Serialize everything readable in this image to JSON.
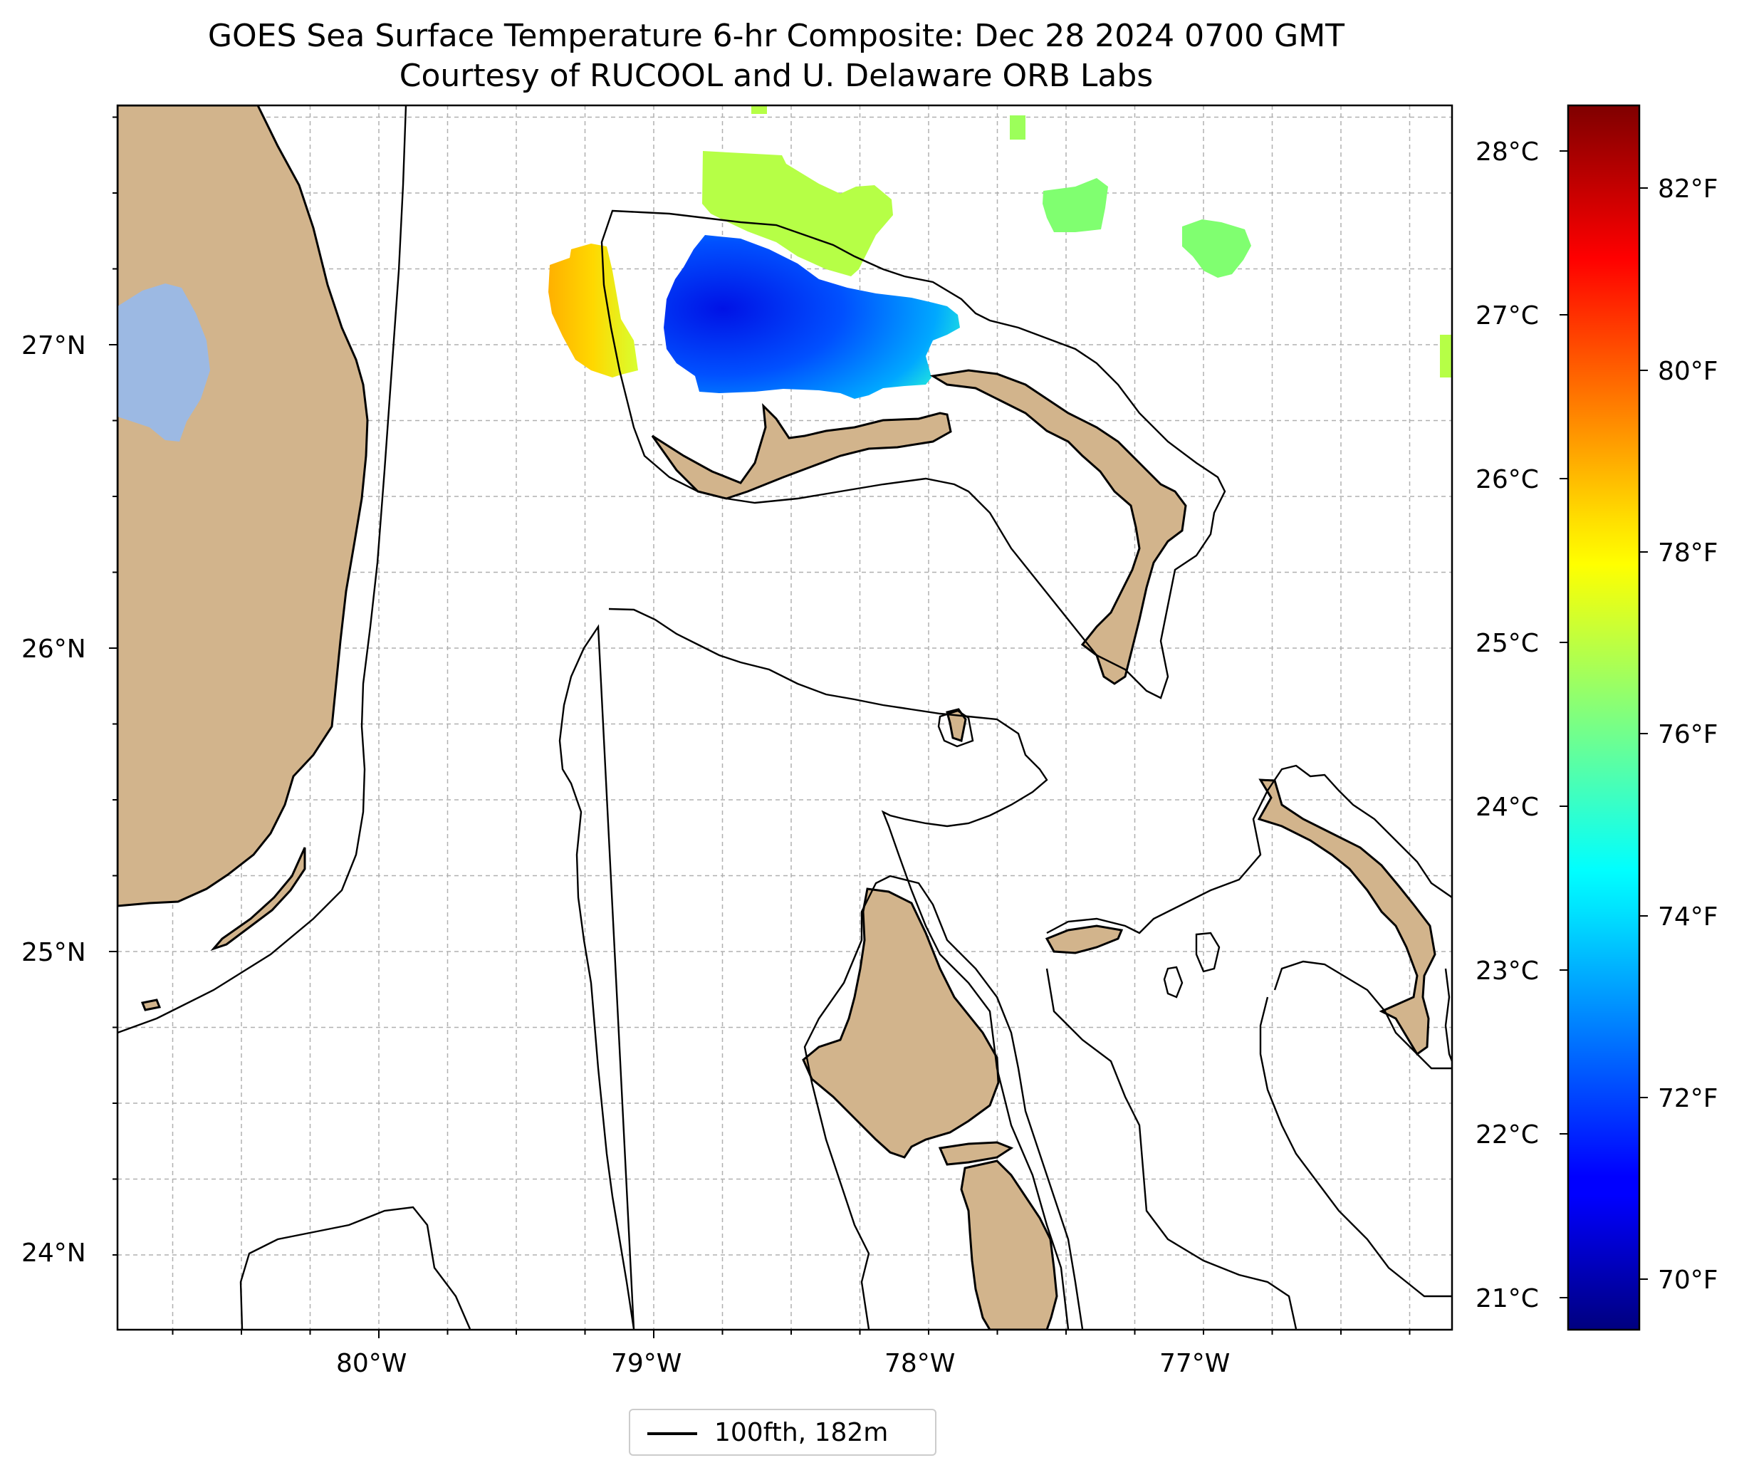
{
  "title_line1": "GOES Sea Surface Temperature 6-hr Composite: Dec 28 2024 0700 GMT",
  "title_line2": "Courtesy of RUCOOL and U. Delaware ORB Labs",
  "longitude_ticks": [
    "80°W",
    "79°W",
    "78°W",
    "77°W"
  ],
  "latitude_ticks": [
    "27°N",
    "26°N",
    "25°N",
    "24°N"
  ],
  "colorbar": {
    "colormap": "jet",
    "celsius_ticks": [
      "28°C",
      "27°C",
      "26°C",
      "25°C",
      "24°C",
      "23°C",
      "22°C",
      "21°C"
    ],
    "fahrenheit_ticks": [
      "82°F",
      "80°F",
      "78°F",
      "76°F",
      "74°F",
      "72°F",
      "70°F"
    ]
  },
  "legend": {
    "label": "100fth, 182m"
  },
  "colors": {
    "land": "#d2b48c",
    "lake": "#9cb9e3",
    "grid": "#b0b0b0",
    "contour": "#000000"
  }
}
